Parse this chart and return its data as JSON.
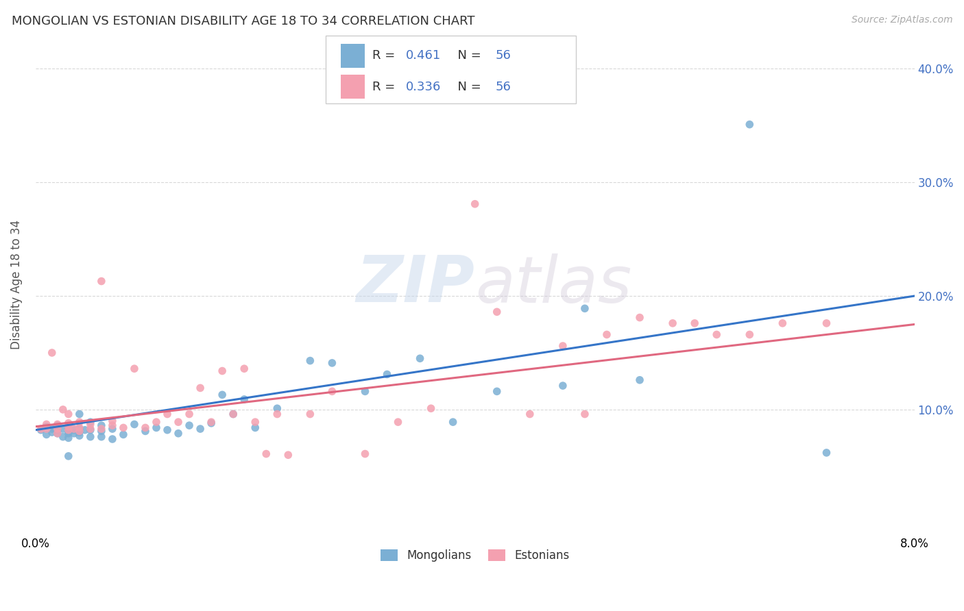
{
  "title": "MONGOLIAN VS ESTONIAN DISABILITY AGE 18 TO 34 CORRELATION CHART",
  "source": "Source: ZipAtlas.com",
  "ylabel": "Disability Age 18 to 34",
  "xlim": [
    0.0,
    0.08
  ],
  "ylim": [
    -0.01,
    0.43
  ],
  "yticks": [
    0.1,
    0.2,
    0.3,
    0.4
  ],
  "ytick_labels": [
    "10.0%",
    "20.0%",
    "30.0%",
    "40.0%"
  ],
  "xticks": [
    0.0,
    0.01,
    0.02,
    0.03,
    0.04,
    0.05,
    0.06,
    0.07,
    0.08
  ],
  "xtick_labels": [
    "0.0%",
    "",
    "",
    "",
    "",
    "",
    "",
    "",
    "8.0%"
  ],
  "mongolian_color": "#7bafd4",
  "estonian_color": "#f4a0b0",
  "mongolian_line_color": "#3575c8",
  "estonian_line_color": "#e06880",
  "R_mongolian": 0.461,
  "R_estonian": 0.336,
  "N": 56,
  "background_color": "#ffffff",
  "grid_color": "#d8d8d8",
  "title_color": "#333333",
  "right_ytick_color": "#4472c4",
  "watermark_zip": "ZIP",
  "watermark_atlas": "atlas",
  "legend_R_color": "#4472c4",
  "legend_N_color": "#333333",
  "mongolians_scatter_x": [
    0.0005,
    0.001,
    0.001,
    0.0015,
    0.0015,
    0.002,
    0.002,
    0.002,
    0.0025,
    0.0025,
    0.003,
    0.003,
    0.003,
    0.003,
    0.003,
    0.0035,
    0.0035,
    0.004,
    0.004,
    0.004,
    0.004,
    0.0045,
    0.005,
    0.005,
    0.005,
    0.006,
    0.006,
    0.006,
    0.007,
    0.007,
    0.008,
    0.009,
    0.01,
    0.011,
    0.012,
    0.013,
    0.014,
    0.015,
    0.016,
    0.017,
    0.018,
    0.019,
    0.02,
    0.022,
    0.025,
    0.027,
    0.03,
    0.032,
    0.035,
    0.038,
    0.042,
    0.048,
    0.05,
    0.055,
    0.065,
    0.072
  ],
  "mongolians_scatter_y": [
    0.082,
    0.078,
    0.085,
    0.08,
    0.083,
    0.079,
    0.082,
    0.086,
    0.076,
    0.083,
    0.075,
    0.079,
    0.081,
    0.084,
    0.059,
    0.079,
    0.082,
    0.077,
    0.08,
    0.083,
    0.096,
    0.082,
    0.076,
    0.082,
    0.089,
    0.076,
    0.081,
    0.086,
    0.074,
    0.083,
    0.078,
    0.087,
    0.081,
    0.084,
    0.082,
    0.079,
    0.086,
    0.083,
    0.088,
    0.113,
    0.096,
    0.109,
    0.084,
    0.101,
    0.143,
    0.141,
    0.116,
    0.131,
    0.145,
    0.089,
    0.116,
    0.121,
    0.189,
    0.126,
    0.351,
    0.062
  ],
  "estonians_scatter_x": [
    0.0005,
    0.001,
    0.001,
    0.0015,
    0.002,
    0.002,
    0.002,
    0.0025,
    0.003,
    0.003,
    0.003,
    0.003,
    0.0035,
    0.004,
    0.004,
    0.004,
    0.005,
    0.005,
    0.006,
    0.006,
    0.007,
    0.007,
    0.008,
    0.009,
    0.01,
    0.011,
    0.012,
    0.013,
    0.014,
    0.015,
    0.016,
    0.017,
    0.018,
    0.019,
    0.02,
    0.021,
    0.022,
    0.023,
    0.025,
    0.027,
    0.03,
    0.033,
    0.036,
    0.04,
    0.042,
    0.045,
    0.048,
    0.05,
    0.052,
    0.055,
    0.058,
    0.06,
    0.062,
    0.065,
    0.068,
    0.072
  ],
  "estonians_scatter_y": [
    0.083,
    0.083,
    0.087,
    0.15,
    0.079,
    0.083,
    0.087,
    0.1,
    0.082,
    0.085,
    0.088,
    0.096,
    0.083,
    0.081,
    0.084,
    0.089,
    0.083,
    0.087,
    0.083,
    0.213,
    0.086,
    0.09,
    0.084,
    0.136,
    0.084,
    0.089,
    0.096,
    0.089,
    0.096,
    0.119,
    0.089,
    0.134,
    0.096,
    0.136,
    0.089,
    0.061,
    0.096,
    0.06,
    0.096,
    0.116,
    0.061,
    0.089,
    0.101,
    0.281,
    0.186,
    0.096,
    0.156,
    0.096,
    0.166,
    0.181,
    0.176,
    0.176,
    0.166,
    0.166,
    0.176,
    0.176
  ],
  "mon_line_x0": 0.0,
  "mon_line_y0": 0.082,
  "mon_line_x1": 0.08,
  "mon_line_y1": 0.2,
  "est_line_x0": 0.0,
  "est_line_y0": 0.085,
  "est_line_x1": 0.08,
  "est_line_y1": 0.175
}
